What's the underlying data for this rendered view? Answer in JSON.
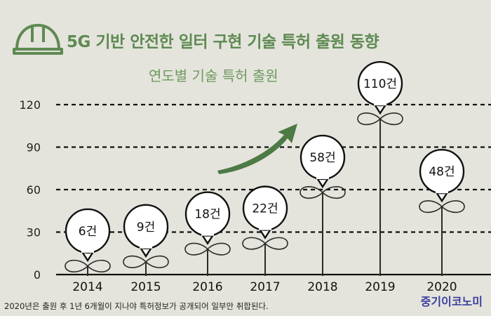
{
  "header": {
    "title": "5G 기반 안전한 일터 구현 기술 특허 출원 동향",
    "icon": "hard-hat-icon"
  },
  "chart_data": {
    "type": "bar",
    "title": "5G 기반 안전한 일터 구현 기술 특허 출원 동향",
    "subtitle": "연도별 기술  특허 출원",
    "categories": [
      "2014",
      "2015",
      "2016",
      "2017",
      "2018",
      "2019",
      "2020"
    ],
    "values": [
      6,
      9,
      18,
      22,
      58,
      110,
      48
    ],
    "data_labels": [
      "6건",
      "9건",
      "18건",
      "22건",
      "58건",
      "110건",
      "48건"
    ],
    "y_ticks": [
      0,
      30,
      60,
      90,
      120
    ],
    "ylim": [
      0,
      130
    ],
    "grid": true,
    "mark_style": "sprout-with-speech-bubble",
    "annotation": "trend-arrow-up"
  },
  "footer": {
    "note": "2020년은 출원 후 1년 6개월이 지나야 특허정보가 공개되어 일부만 취합된다.",
    "logo": "중기이코노미"
  },
  "colors": {
    "background": "#e4e4dc",
    "title": "#5e8a52",
    "arrow": "#4e7a45",
    "grid": "#111111",
    "logo": "#3a3fa0"
  }
}
